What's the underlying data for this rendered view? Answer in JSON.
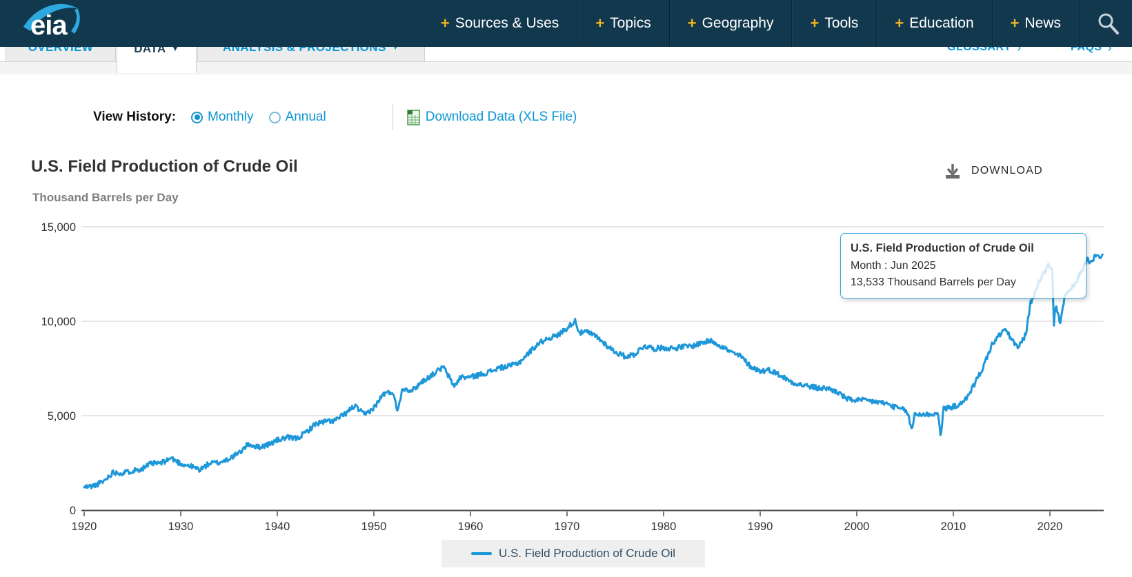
{
  "nav": {
    "logo_text": "eia",
    "bullet": "+",
    "items": [
      {
        "label": "Sources & Uses"
      },
      {
        "label": "Topics"
      },
      {
        "label": "Geography"
      },
      {
        "label": "Tools"
      },
      {
        "label": "Education"
      },
      {
        "label": "News"
      }
    ]
  },
  "tab_bar": {
    "caret": "▼",
    "link_arrow": "›",
    "tabs": [
      {
        "label": "OVERVIEW",
        "active": false
      },
      {
        "label": "DATA",
        "active": true
      },
      {
        "label": "ANALYSIS & PROJECTIONS",
        "active": false
      }
    ],
    "links": [
      {
        "label": "GLOSSARY"
      },
      {
        "label": "FAQS"
      }
    ]
  },
  "controls": {
    "view_history_label": "View History:",
    "options": [
      {
        "label": "Monthly",
        "selected": true
      },
      {
        "label": "Annual",
        "selected": false
      }
    ],
    "download_data_label": "Download Data (XLS File)"
  },
  "chart_header": {
    "title": "U.S. Field Production of Crude Oil",
    "download_label": "DOWNLOAD",
    "units_label": "Thousand Barrels per Day"
  },
  "tooltip": {
    "title": "U.S. Field Production of Crude Oil",
    "period_line": "Month : Jun 2025",
    "value_line": "13,533 Thousand Barrels per Day"
  },
  "legend": {
    "label": "U.S. Field Production of Crude Oil"
  },
  "colors": {
    "nav_bg": "#12384d",
    "gold": "#f0b323",
    "link_blue": "#0a96d4",
    "line_blue": "#1e97d9",
    "gridline": "#d8d8d8",
    "axis_line": "#4d4d4d",
    "axis_text": "#333333"
  },
  "chart_data": {
    "type": "line",
    "title": "U.S. Field Production of Crude Oil",
    "ylabel": "Thousand Barrels per Day",
    "xlim": [
      1920,
      2025.45
    ],
    "ylim": [
      0,
      15000
    ],
    "grid": "horizontal",
    "legend_position": "bottom",
    "y_ticks": [
      {
        "value": 0,
        "label": "0"
      },
      {
        "value": 5000,
        "label": "5,000"
      },
      {
        "value": 10000,
        "label": "10,000"
      },
      {
        "value": 15000,
        "label": "15,000"
      }
    ],
    "x_ticks": [
      1920,
      1930,
      1940,
      1950,
      1960,
      1970,
      1980,
      1990,
      2000,
      2010,
      2020
    ],
    "monthly_noise": 140,
    "series": [
      {
        "name": "U.S. Field Production of Crude Oil",
        "frequency": "monthly",
        "anchors": [
          [
            1920,
            1210
          ],
          [
            1921,
            1290
          ],
          [
            1922,
            1520
          ],
          [
            1923,
            2010
          ],
          [
            1924,
            1960
          ],
          [
            1925,
            2090
          ],
          [
            1926,
            2200
          ],
          [
            1927,
            2470
          ],
          [
            1928,
            2490
          ],
          [
            1929,
            2760
          ],
          [
            1930,
            2460
          ],
          [
            1931,
            2330
          ],
          [
            1932,
            2140
          ],
          [
            1933,
            2480
          ],
          [
            1934,
            2520
          ],
          [
            1935,
            2730
          ],
          [
            1936,
            3000
          ],
          [
            1937,
            3500
          ],
          [
            1938,
            3330
          ],
          [
            1939,
            3460
          ],
          [
            1940,
            3700
          ],
          [
            1941,
            3840
          ],
          [
            1942,
            3790
          ],
          [
            1943,
            4130
          ],
          [
            1944,
            4580
          ],
          [
            1945,
            4690
          ],
          [
            1946,
            4750
          ],
          [
            1947,
            5090
          ],
          [
            1948,
            5520
          ],
          [
            1949,
            5050
          ],
          [
            1950,
            5410
          ],
          [
            1951,
            6160
          ],
          [
            1952,
            6260
          ],
          [
            1952.4,
            5250
          ],
          [
            1953,
            6460
          ],
          [
            1954,
            6340
          ],
          [
            1955,
            6810
          ],
          [
            1956,
            7150
          ],
          [
            1957.2,
            7580
          ],
          [
            1958.3,
            6560
          ],
          [
            1959,
            7050
          ],
          [
            1960,
            7040
          ],
          [
            1961,
            7180
          ],
          [
            1962,
            7330
          ],
          [
            1963,
            7540
          ],
          [
            1964,
            7610
          ],
          [
            1965,
            7800
          ],
          [
            1966,
            8300
          ],
          [
            1967,
            8810
          ],
          [
            1968,
            9100
          ],
          [
            1969,
            9240
          ],
          [
            1970,
            9640
          ],
          [
            1970.85,
            10040
          ],
          [
            1971.3,
            9380
          ],
          [
            1972,
            9440
          ],
          [
            1973,
            9210
          ],
          [
            1974,
            8770
          ],
          [
            1975,
            8370
          ],
          [
            1976,
            8130
          ],
          [
            1977,
            8250
          ],
          [
            1978,
            8710
          ],
          [
            1979,
            8550
          ],
          [
            1980,
            8600
          ],
          [
            1981,
            8570
          ],
          [
            1982,
            8650
          ],
          [
            1983,
            8690
          ],
          [
            1984,
            8880
          ],
          [
            1985,
            8970
          ],
          [
            1986,
            8680
          ],
          [
            1987,
            8350
          ],
          [
            1988,
            8140
          ],
          [
            1989,
            7610
          ],
          [
            1990,
            7360
          ],
          [
            1991,
            7420
          ],
          [
            1992,
            7170
          ],
          [
            1993,
            6850
          ],
          [
            1994,
            6660
          ],
          [
            1995,
            6560
          ],
          [
            1996,
            6460
          ],
          [
            1997,
            6450
          ],
          [
            1998,
            6250
          ],
          [
            1999,
            5880
          ],
          [
            2000,
            5820
          ],
          [
            2001,
            5800
          ],
          [
            2002,
            5740
          ],
          [
            2003,
            5650
          ],
          [
            2004,
            5440
          ],
          [
            2005.2,
            5250
          ],
          [
            2005.7,
            4210
          ],
          [
            2006,
            5090
          ],
          [
            2007,
            5060
          ],
          [
            2008.4,
            5100
          ],
          [
            2008.7,
            3970
          ],
          [
            2009,
            5350
          ],
          [
            2010,
            5480
          ],
          [
            2011,
            5650
          ],
          [
            2012,
            6500
          ],
          [
            2013,
            7470
          ],
          [
            2014,
            8760
          ],
          [
            2015.3,
            9600
          ],
          [
            2016.7,
            8570
          ],
          [
            2017.5,
            9300
          ],
          [
            2018,
            10960
          ],
          [
            2019,
            12250
          ],
          [
            2019.9,
            12970
          ],
          [
            2020.25,
            12750
          ],
          [
            2020.4,
            9710
          ],
          [
            2020.6,
            10900
          ],
          [
            2020.8,
            10450
          ],
          [
            2021.1,
            9860
          ],
          [
            2021.5,
            11250
          ],
          [
            2022,
            11600
          ],
          [
            2022.7,
            12000
          ],
          [
            2023,
            12400
          ],
          [
            2023.9,
            13300
          ],
          [
            2024.2,
            13050
          ],
          [
            2024.6,
            13400
          ],
          [
            2025,
            13440
          ],
          [
            2025.2,
            13300
          ],
          [
            2025.45,
            13533
          ]
        ],
        "last_point": {
          "year_decimal": 2025.45,
          "month": "Jun 2025",
          "value": 13533
        }
      }
    ]
  }
}
